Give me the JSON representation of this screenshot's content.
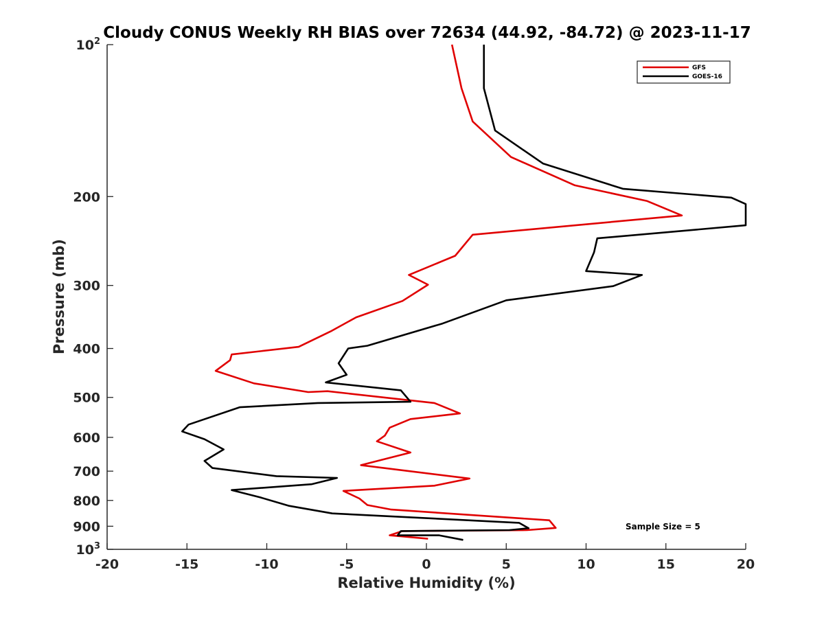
{
  "chart_data": {
    "type": "line",
    "title": "Cloudy CONUS Weekly RH BIAS over 72634 (44.92, -84.72) @ 2023-11-17",
    "xlabel": "Relative Humidity (%)",
    "ylabel": "Pressure (mb)",
    "xlim": [
      -20,
      20
    ],
    "ylim": [
      100,
      1000
    ],
    "y_scale": "log",
    "y_reversed": true,
    "grid": false,
    "legend_position": "top-right",
    "x_ticks": [
      "-20",
      "-15",
      "-10",
      "-5",
      "0",
      "5",
      "10",
      "15",
      "20"
    ],
    "y_ticks": [
      {
        "value": 100,
        "base": "10",
        "exp": "2"
      },
      {
        "value": 200,
        "label": "200"
      },
      {
        "value": 300,
        "label": "300"
      },
      {
        "value": 400,
        "label": "400"
      },
      {
        "value": 500,
        "label": "500"
      },
      {
        "value": 600,
        "label": "600"
      },
      {
        "value": 700,
        "label": "700"
      },
      {
        "value": 800,
        "label": "800"
      },
      {
        "value": 900,
        "label": "900"
      },
      {
        "value": 1000,
        "base": "10",
        "exp": "3"
      }
    ],
    "annotation": "Sample Size = 5",
    "series": [
      {
        "name": "GFS",
        "color": "#e00000",
        "x": [
          1.6,
          2.2,
          2.9,
          5.3,
          9.3,
          13.8,
          16.0,
          2.9,
          1.8,
          -1.1,
          0.1,
          -1.5,
          -4.4,
          -6.0,
          -8.0,
          -12.2,
          -12.3,
          -13.2,
          -10.8,
          -7.4,
          -6.2,
          0.5,
          2.1,
          -1.0,
          -2.3,
          -2.6,
          -3.1,
          -1.0,
          -4.1,
          2.7,
          0.5,
          -5.2,
          -4.2,
          -3.7,
          -2.2,
          7.7,
          8.1,
          6.3,
          -1.5,
          -2.3,
          0.1
        ],
        "y": [
          100,
          122,
          142,
          167,
          190,
          204,
          218,
          238,
          262,
          286,
          299,
          322,
          347,
          370,
          397,
          411,
          422,
          443,
          469,
          488,
          486,
          513,
          538,
          552,
          574,
          595,
          611,
          643,
          681,
          724,
          748,
          766,
          793,
          817,
          834,
          876,
          907,
          916,
          920,
          938,
          953
        ]
      },
      {
        "name": "GOES-16",
        "color": "#000000",
        "x": [
          3.6,
          3.6,
          3.6,
          4.3,
          7.3,
          12.3,
          19.1,
          20.0,
          20.0,
          10.7,
          10.5,
          10.0,
          13.5,
          11.7,
          5.0,
          1.0,
          -3.7,
          -4.9,
          -5.5,
          -5.0,
          -6.3,
          -1.6,
          -1.0,
          -6.8,
          -11.7,
          -14.9,
          -15.3,
          -13.9,
          -12.7,
          -13.9,
          -13.4,
          -9.4,
          -5.6,
          -7.2,
          -12.2,
          -10.4,
          -8.6,
          -5.9,
          5.8,
          6.4,
          5.2,
          -1.6,
          -1.8,
          0.8,
          2.3
        ],
        "y": [
          100,
          100,
          122,
          148,
          172,
          193,
          201,
          207,
          228,
          242,
          258,
          281,
          286,
          301,
          321,
          357,
          395,
          400,
          428,
          451,
          467,
          484,
          510,
          513,
          523,
          566,
          584,
          605,
          634,
          668,
          690,
          716,
          722,
          743,
          763,
          789,
          820,
          849,
          886,
          908,
          916,
          920,
          938,
          938,
          958
        ]
      }
    ]
  }
}
